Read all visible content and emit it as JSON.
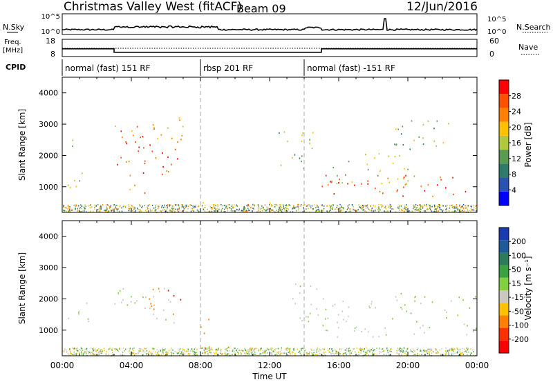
{
  "header": {
    "station": "Christmas Valley West (fitACF)",
    "beam": "Beam 09",
    "date": "12/Jun/2016"
  },
  "nsky_panel": {
    "left_label": "N.Sky",
    "left_ticks": [
      "10^5",
      "10^0"
    ],
    "right_label": "N.Search",
    "right_ticks": [
      "10^5",
      "10^0"
    ]
  },
  "freq_panel": {
    "left_label_1": "Freq.",
    "left_label_2": "[MHz]",
    "left_ticks": [
      "18",
      "8"
    ],
    "right_label": "Nave",
    "right_ticks": [
      "60",
      "0"
    ]
  },
  "cpid": {
    "label": "CPID",
    "segments": [
      {
        "name": "normal (fast) 151 RF",
        "start_h": 0,
        "end_h": 8
      },
      {
        "name": "rbsp 201 RF",
        "start_h": 8,
        "end_h": 14
      },
      {
        "name": "normal (fast) -151 RF",
        "start_h": 14,
        "end_h": 24
      }
    ]
  },
  "power_colorbar": {
    "label": "Power [dB]",
    "ticks": [
      "4",
      "8",
      "12",
      "16",
      "20",
      "24",
      "28"
    ],
    "colors": [
      "#0000ff",
      "#2a52b0",
      "#2f7a6a",
      "#5a9a50",
      "#b0c840",
      "#ffc000",
      "#ff8000",
      "#ff5000",
      "#ff0000"
    ]
  },
  "velocity_colorbar": {
    "label": "Velocity [m s⁻¹]",
    "ticks": [
      "200",
      "100",
      "50",
      "15",
      "-15",
      "-50",
      "-100",
      "-200"
    ],
    "colors": [
      "#1a3ab0",
      "#1e5a9a",
      "#2e7a5a",
      "#3aa040",
      "#80d040",
      "#c8c8c0",
      "#ffc000",
      "#ff8000",
      "#ff3000",
      "#ff0000"
    ]
  },
  "axes": {
    "ylabel": "Slant Range [km]",
    "yticks": [
      "4000",
      "3000",
      "2000",
      "1000"
    ],
    "xlabel": "Time UT",
    "xticks": [
      "00:00",
      "04:00",
      "08:00",
      "12:00",
      "16:00",
      "20:00",
      "00:00"
    ]
  },
  "chart_data": {
    "type": "heatmap",
    "title": "Christmas Valley West (fitACF)",
    "xlabel": "Time UT",
    "ylabel": "Slant Range [km]",
    "xlim_hours": [
      0,
      24
    ],
    "ylim_km": [
      180,
      4500
    ],
    "freq_mhz": [
      {
        "start_h": 0,
        "end_h": 3,
        "value": 12.5
      },
      {
        "start_h": 3,
        "end_h": 15,
        "value": 10.5
      },
      {
        "start_h": 15,
        "end_h": 24,
        "value": 12.5
      }
    ],
    "power_regions": [
      {
        "t": [
          0.3,
          1.3
        ],
        "r": [
          800,
          1800
        ],
        "dB": 18
      },
      {
        "t": [
          0.5,
          1.5
        ],
        "r": [
          2300,
          2700
        ],
        "dB": 10
      },
      {
        "t": [
          2.8,
          6.8
        ],
        "r": [
          1300,
          2500
        ],
        "dB": 27
      },
      {
        "t": [
          3.0,
          5.8
        ],
        "r": [
          2600,
          3200
        ],
        "dB": 24
      },
      {
        "t": [
          3.0,
          5.0
        ],
        "r": [
          800,
          1100
        ],
        "dB": 22
      },
      {
        "t": [
          5.0,
          7.2
        ],
        "r": [
          2400,
          3300
        ],
        "dB": 20
      },
      {
        "t": [
          8.0,
          14.0
        ],
        "r": [
          200,
          550
        ],
        "dB": 16
      },
      {
        "t": [
          12.5,
          14.5
        ],
        "r": [
          1300,
          2800
        ],
        "dB": 14
      },
      {
        "t": [
          15.0,
          24.0
        ],
        "r": [
          700,
          1400
        ],
        "dB": 27
      },
      {
        "t": [
          15.5,
          20.5
        ],
        "r": [
          1100,
          2100
        ],
        "dB": 17
      },
      {
        "t": [
          18.5,
          22.5
        ],
        "r": [
          2200,
          3200
        ],
        "dB": 14
      }
    ],
    "velocity_regions": [
      {
        "t": [
          0.3,
          1.5
        ],
        "r": [
          1100,
          2100
        ],
        "v": 0
      },
      {
        "t": [
          2.8,
          6.5
        ],
        "r": [
          1200,
          2400
        ],
        "v": 0
      },
      {
        "t": [
          5.0,
          6.5
        ],
        "r": [
          1500,
          2400
        ],
        "v": -60
      },
      {
        "t": [
          6.0,
          7.2
        ],
        "r": [
          1900,
          2300
        ],
        "v": -220
      },
      {
        "t": [
          7.5,
          8.5
        ],
        "r": [
          900,
          1400
        ],
        "v": -80
      },
      {
        "t": [
          8.0,
          11.0
        ],
        "r": [
          200,
          500
        ],
        "v": -60
      },
      {
        "t": [
          9.0,
          13.0
        ],
        "r": [
          200,
          450
        ],
        "v": 10
      },
      {
        "t": [
          13.0,
          15.0
        ],
        "r": [
          1300,
          2700
        ],
        "v": 0
      },
      {
        "t": [
          15.0,
          24.0
        ],
        "r": [
          800,
          2200
        ],
        "v": 0
      }
    ]
  }
}
